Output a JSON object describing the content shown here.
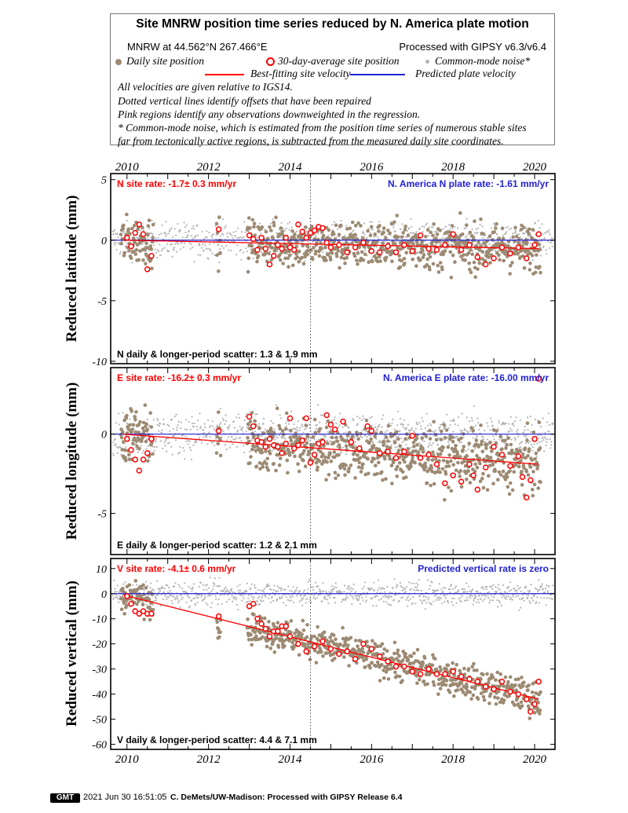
{
  "title": "Site MNRW position time series reduced by N. America plate motion",
  "header": {
    "site_location": "MNRW at 44.562°N 267.466°E",
    "processing": "Processed with GIPSY v6.3/v6.4",
    "legend_daily": "Daily site position",
    "legend_avg": "30-day-average site position",
    "legend_cmn": "Common-mode noise*",
    "legend_fit": "Best-fitting site velocity",
    "legend_plate": "Predicted plate velocity",
    "note1": "All velocities are given relative to IGS14.",
    "note2": "Dotted vertical lines identify offsets that have been repaired",
    "note3": "Pink regions identify any observations downweighted in the regression.",
    "note4": "* Common-mode noise, which is estimated from the position time series of numerous stable sites",
    "note5": "far from tectonically active regions, is subtracted from the measured daily site coordinates."
  },
  "colors": {
    "daily": "#9c8a73",
    "average_stroke": "#ff0000",
    "common_mode": "#b4b4b4",
    "fit_line": "#ff0000",
    "plate_line": "#1f1fd6",
    "site_rate_text": "#ff0000",
    "plate_rate_text": "#1f1fd6"
  },
  "chart_data": [
    {
      "type": "scatter",
      "component": "N",
      "ylabel": "Reduced latitude (mm)",
      "site_rate": "N site rate:  -1.7± 0.3 mm/yr",
      "plate_rate": "N. America N plate rate: -1.61 mm/yr",
      "scatter": "N daily & longer-period scatter:   1.3 &   1.9 mm",
      "xlim": [
        2009.6,
        2020.5
      ],
      "ylim": [
        -10.2,
        5.5
      ],
      "yticks": [
        5,
        0,
        -5,
        -10
      ],
      "xticks": [
        2010,
        2012,
        2014,
        2016,
        2018,
        2020
      ],
      "offset_epochs": [
        2014.5
      ],
      "fit_line": {
        "x": [
          2009.9,
          2020.1
        ],
        "y": [
          0,
          -0.7
        ]
      },
      "plate_line": {
        "x": [
          2009.6,
          2020.5
        ],
        "y": [
          0,
          0
        ]
      },
      "averages": [
        [
          2010.0,
          0.2
        ],
        [
          2010.1,
          -0.5
        ],
        [
          2010.2,
          0.6
        ],
        [
          2010.3,
          1.3
        ],
        [
          2010.4,
          0.5
        ],
        [
          2010.5,
          -2.4
        ],
        [
          2010.6,
          -1.3
        ],
        [
          2012.25,
          0.9
        ],
        [
          2013.0,
          0.4
        ],
        [
          2013.1,
          0.1
        ],
        [
          2013.2,
          -0.8
        ],
        [
          2013.3,
          0.2
        ],
        [
          2013.4,
          -0.7
        ],
        [
          2013.5,
          -2.0
        ],
        [
          2013.6,
          -1.3
        ],
        [
          2013.7,
          -0.4
        ],
        [
          2013.8,
          -0.7
        ],
        [
          2013.9,
          0.2
        ],
        [
          2014.0,
          -0.6
        ],
        [
          2014.1,
          -0.8
        ],
        [
          2014.2,
          1.3
        ],
        [
          2014.3,
          0.7
        ],
        [
          2014.4,
          0.2
        ],
        [
          2014.5,
          0.6
        ],
        [
          2014.6,
          0.8
        ],
        [
          2014.7,
          1.1
        ],
        [
          2014.8,
          1.0
        ],
        [
          2014.9,
          -0.2
        ],
        [
          2015.0,
          -0.6
        ],
        [
          2015.2,
          -0.4
        ],
        [
          2015.4,
          -1.0
        ],
        [
          2015.6,
          -0.6
        ],
        [
          2015.8,
          -0.2
        ],
        [
          2016.0,
          -0.9
        ],
        [
          2016.2,
          -1.0
        ],
        [
          2016.4,
          -0.5
        ],
        [
          2016.6,
          -1.0
        ],
        [
          2016.8,
          -0.4
        ],
        [
          2017.0,
          -0.9
        ],
        [
          2017.2,
          0.4
        ],
        [
          2017.4,
          -0.7
        ],
        [
          2017.6,
          -0.8
        ],
        [
          2017.8,
          -0.4
        ],
        [
          2018.0,
          0.5
        ],
        [
          2018.2,
          -0.8
        ],
        [
          2018.4,
          -0.4
        ],
        [
          2018.6,
          -1.4
        ],
        [
          2018.8,
          -2.0
        ],
        [
          2019.0,
          -1.5
        ],
        [
          2019.2,
          -0.6
        ],
        [
          2019.4,
          -1.1
        ],
        [
          2019.6,
          -0.6
        ],
        [
          2019.8,
          -1.5
        ],
        [
          2020.0,
          -0.4
        ],
        [
          2020.1,
          0.5
        ]
      ]
    },
    {
      "type": "scatter",
      "component": "E",
      "ylabel": "Reduced longitude (mm)",
      "site_rate": "E site rate:  -16.2± 0.3 mm/yr",
      "plate_rate": "N. America E plate rate: -16.00 mm/yr",
      "scatter": "E daily & longer-period scatter:   1.2 &   2.1 mm",
      "xlim": [
        2009.6,
        2020.5
      ],
      "ylim": [
        -7.6,
        4.2
      ],
      "yticks": [
        0,
        -5
      ],
      "xticks": [
        2010,
        2012,
        2014,
        2016,
        2018,
        2020
      ],
      "offset_epochs": [
        2014.5
      ],
      "fit_line": {
        "x": [
          2009.9,
          2020.1
        ],
        "y": [
          0,
          -1.9
        ]
      },
      "plate_line": {
        "x": [
          2009.6,
          2020.5
        ],
        "y": [
          0,
          0
        ]
      },
      "averages": [
        [
          2010.0,
          -0.3
        ],
        [
          2010.1,
          -1.0
        ],
        [
          2010.2,
          -1.6
        ],
        [
          2010.3,
          -2.3
        ],
        [
          2010.4,
          -1.6
        ],
        [
          2010.5,
          -1.2
        ],
        [
          2010.6,
          -0.3
        ],
        [
          2012.25,
          0.2
        ],
        [
          2013.0,
          1.1
        ],
        [
          2013.1,
          0.5
        ],
        [
          2013.2,
          -0.4
        ],
        [
          2013.3,
          -0.5
        ],
        [
          2013.4,
          -0.8
        ],
        [
          2013.5,
          -0.3
        ],
        [
          2013.6,
          -0.7
        ],
        [
          2013.7,
          -0.8
        ],
        [
          2013.8,
          -1.2
        ],
        [
          2013.9,
          -0.6
        ],
        [
          2014.0,
          1.0
        ],
        [
          2014.1,
          -0.9
        ],
        [
          2014.2,
          -0.7
        ],
        [
          2014.3,
          -0.4
        ],
        [
          2014.4,
          1.0
        ],
        [
          2014.5,
          -1.8
        ],
        [
          2014.6,
          -1.3
        ],
        [
          2014.7,
          -0.6
        ],
        [
          2014.8,
          -0.5
        ],
        [
          2014.9,
          1.2
        ],
        [
          2015.0,
          0.6
        ],
        [
          2015.1,
          0.3
        ],
        [
          2015.3,
          0.8
        ],
        [
          2015.5,
          -0.5
        ],
        [
          2015.7,
          -0.9
        ],
        [
          2015.9,
          0.5
        ],
        [
          2016.0,
          0.2
        ],
        [
          2016.2,
          -1.2
        ],
        [
          2016.4,
          -1.1
        ],
        [
          2016.6,
          -1.5
        ],
        [
          2016.8,
          -1.1
        ],
        [
          2017.0,
          -0.1
        ],
        [
          2017.2,
          -1.5
        ],
        [
          2017.4,
          -1.3
        ],
        [
          2017.6,
          -1.9
        ],
        [
          2017.8,
          -3.1
        ],
        [
          2018.0,
          -2.6
        ],
        [
          2018.2,
          -3.0
        ],
        [
          2018.4,
          -1.9
        ],
        [
          2018.5,
          -2.6
        ],
        [
          2018.6,
          -3.5
        ],
        [
          2018.8,
          -2.1
        ],
        [
          2019.0,
          -0.8
        ],
        [
          2019.2,
          -1.3
        ],
        [
          2019.4,
          -2.0
        ],
        [
          2019.6,
          -1.4
        ],
        [
          2019.7,
          -2.7
        ],
        [
          2019.8,
          -4.0
        ],
        [
          2019.9,
          -2.9
        ],
        [
          2020.0,
          -0.3
        ],
        [
          2020.1,
          3.5
        ]
      ]
    },
    {
      "type": "scatter",
      "component": "V",
      "ylabel": "Reduced vertical (mm)",
      "site_rate": "V site rate:  -4.1± 0.6 mm/yr",
      "plate_rate": "Predicted vertical rate is zero",
      "scatter": "V daily & longer-period scatter:   4.4 &   7.1 mm",
      "xlim": [
        2009.6,
        2020.5
      ],
      "ylim": [
        -62,
        14
      ],
      "yticks": [
        10,
        0,
        -10,
        -20,
        -30,
        -40,
        -50,
        -60
      ],
      "xticks": [
        2010,
        2012,
        2014,
        2016,
        2018,
        2020
      ],
      "offset_epochs": [
        2014.5
      ],
      "fit_line": {
        "x": [
          2009.9,
          2020.1
        ],
        "y": [
          -0.5,
          -42
        ]
      },
      "plate_line": {
        "x": [
          2009.6,
          2020.5
        ],
        "y": [
          0,
          0
        ]
      },
      "averages": [
        [
          2010.0,
          -1
        ],
        [
          2010.1,
          -4
        ],
        [
          2010.2,
          -7
        ],
        [
          2010.3,
          -8
        ],
        [
          2010.4,
          -7
        ],
        [
          2010.5,
          -8
        ],
        [
          2010.6,
          -8
        ],
        [
          2012.25,
          -9
        ],
        [
          2013.0,
          -5
        ],
        [
          2013.1,
          -4
        ],
        [
          2013.2,
          -10
        ],
        [
          2013.3,
          -12
        ],
        [
          2013.4,
          -14
        ],
        [
          2013.5,
          -17
        ],
        [
          2013.6,
          -15
        ],
        [
          2013.7,
          -15
        ],
        [
          2013.8,
          -13
        ],
        [
          2013.9,
          -13
        ],
        [
          2014.0,
          -17
        ],
        [
          2014.2,
          -20
        ],
        [
          2014.4,
          -23
        ],
        [
          2014.6,
          -21
        ],
        [
          2014.8,
          -19
        ],
        [
          2015.0,
          -22
        ],
        [
          2015.2,
          -24
        ],
        [
          2015.4,
          -23
        ],
        [
          2015.6,
          -26
        ],
        [
          2015.8,
          -20
        ],
        [
          2016.0,
          -22
        ],
        [
          2016.2,
          -25
        ],
        [
          2016.4,
          -27
        ],
        [
          2016.6,
          -29
        ],
        [
          2016.8,
          -29
        ],
        [
          2017.0,
          -31
        ],
        [
          2017.2,
          -32
        ],
        [
          2017.4,
          -30
        ],
        [
          2017.6,
          -32
        ],
        [
          2017.8,
          -32
        ],
        [
          2018.0,
          -31
        ],
        [
          2018.2,
          -33
        ],
        [
          2018.4,
          -34
        ],
        [
          2018.6,
          -35
        ],
        [
          2018.8,
          -37
        ],
        [
          2019.0,
          -38
        ],
        [
          2019.2,
          -35
        ],
        [
          2019.4,
          -39
        ],
        [
          2019.6,
          -40
        ],
        [
          2019.8,
          -42
        ],
        [
          2019.9,
          -47
        ],
        [
          2020.0,
          -44
        ],
        [
          2020.1,
          -35
        ]
      ]
    }
  ],
  "footer": {
    "badge": "GMT",
    "timestamp": "2021 Jun 30 16:51:05",
    "credit": "C. DeMets/UW-Madison: Processed with GIPSY Release 6.4"
  }
}
